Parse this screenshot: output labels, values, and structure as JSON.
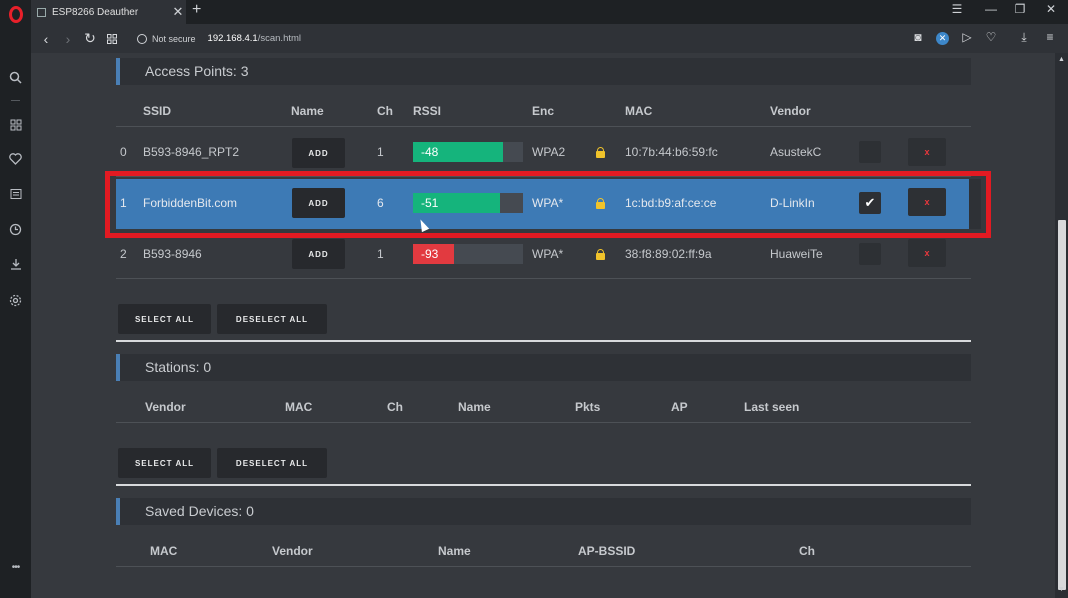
{
  "tab": {
    "title": "ESP8266 Deauther",
    "close": "✕",
    "new": "+"
  },
  "window": {
    "filter": "☰",
    "minimize": "—",
    "restore": "❐",
    "close": "✕"
  },
  "address": {
    "security": "Not secure",
    "host": "192.168.4.1",
    "path": "/scan.html"
  },
  "sidebar": {
    "more": "•••"
  },
  "access_points": {
    "heading": "Access Points: 3",
    "columns": [
      "SSID",
      "Name",
      "Ch",
      "RSSI",
      "Enc",
      "MAC",
      "Vendor"
    ],
    "add_label": "ADD",
    "remove_label": "x",
    "rows": [
      {
        "index": "0",
        "ssid": "B593-8946_RPT2",
        "ch": "1",
        "rssi": "-48",
        "rssi_fill": 0.82,
        "enc": "WPA2",
        "mac": "10:7b:44:b6:59:fc",
        "vendor": "AsustekC",
        "selected": false
      },
      {
        "index": "1",
        "ssid": "ForbiddenBit.com",
        "ch": "6",
        "rssi": "-51",
        "rssi_fill": 0.79,
        "enc": "WPA*",
        "mac": "1c:bd:b9:af:ce:ce",
        "vendor": "D-LinkIn",
        "selected": true
      },
      {
        "index": "2",
        "ssid": "B593-8946",
        "ch": "1",
        "rssi": "-93",
        "rssi_fill": 0.37,
        "enc": "WPA*",
        "mac": "38:f8:89:02:ff:9a",
        "vendor": "HuaweiTe",
        "selected": false
      }
    ],
    "check_mark": "✔",
    "select_all": "SELECT ALL",
    "deselect_all": "DESELECT ALL"
  },
  "stations": {
    "heading": "Stations: 0",
    "columns": [
      "Vendor",
      "MAC",
      "Ch",
      "Name",
      "Pkts",
      "AP",
      "Last seen"
    ],
    "select_all": "SELECT ALL",
    "deselect_all": "DESELECT ALL"
  },
  "saved_devices": {
    "heading": "Saved Devices: 0",
    "columns": [
      "MAC",
      "Vendor",
      "Name",
      "AP-BSSID",
      "Ch"
    ]
  },
  "colors": {
    "rssi_good": "#15b47c",
    "rssi_bad": "#e23a40",
    "selected_row": "#3d7ab5",
    "highlight_box": "#e21a22",
    "section_accent": "#4a7fb5"
  }
}
